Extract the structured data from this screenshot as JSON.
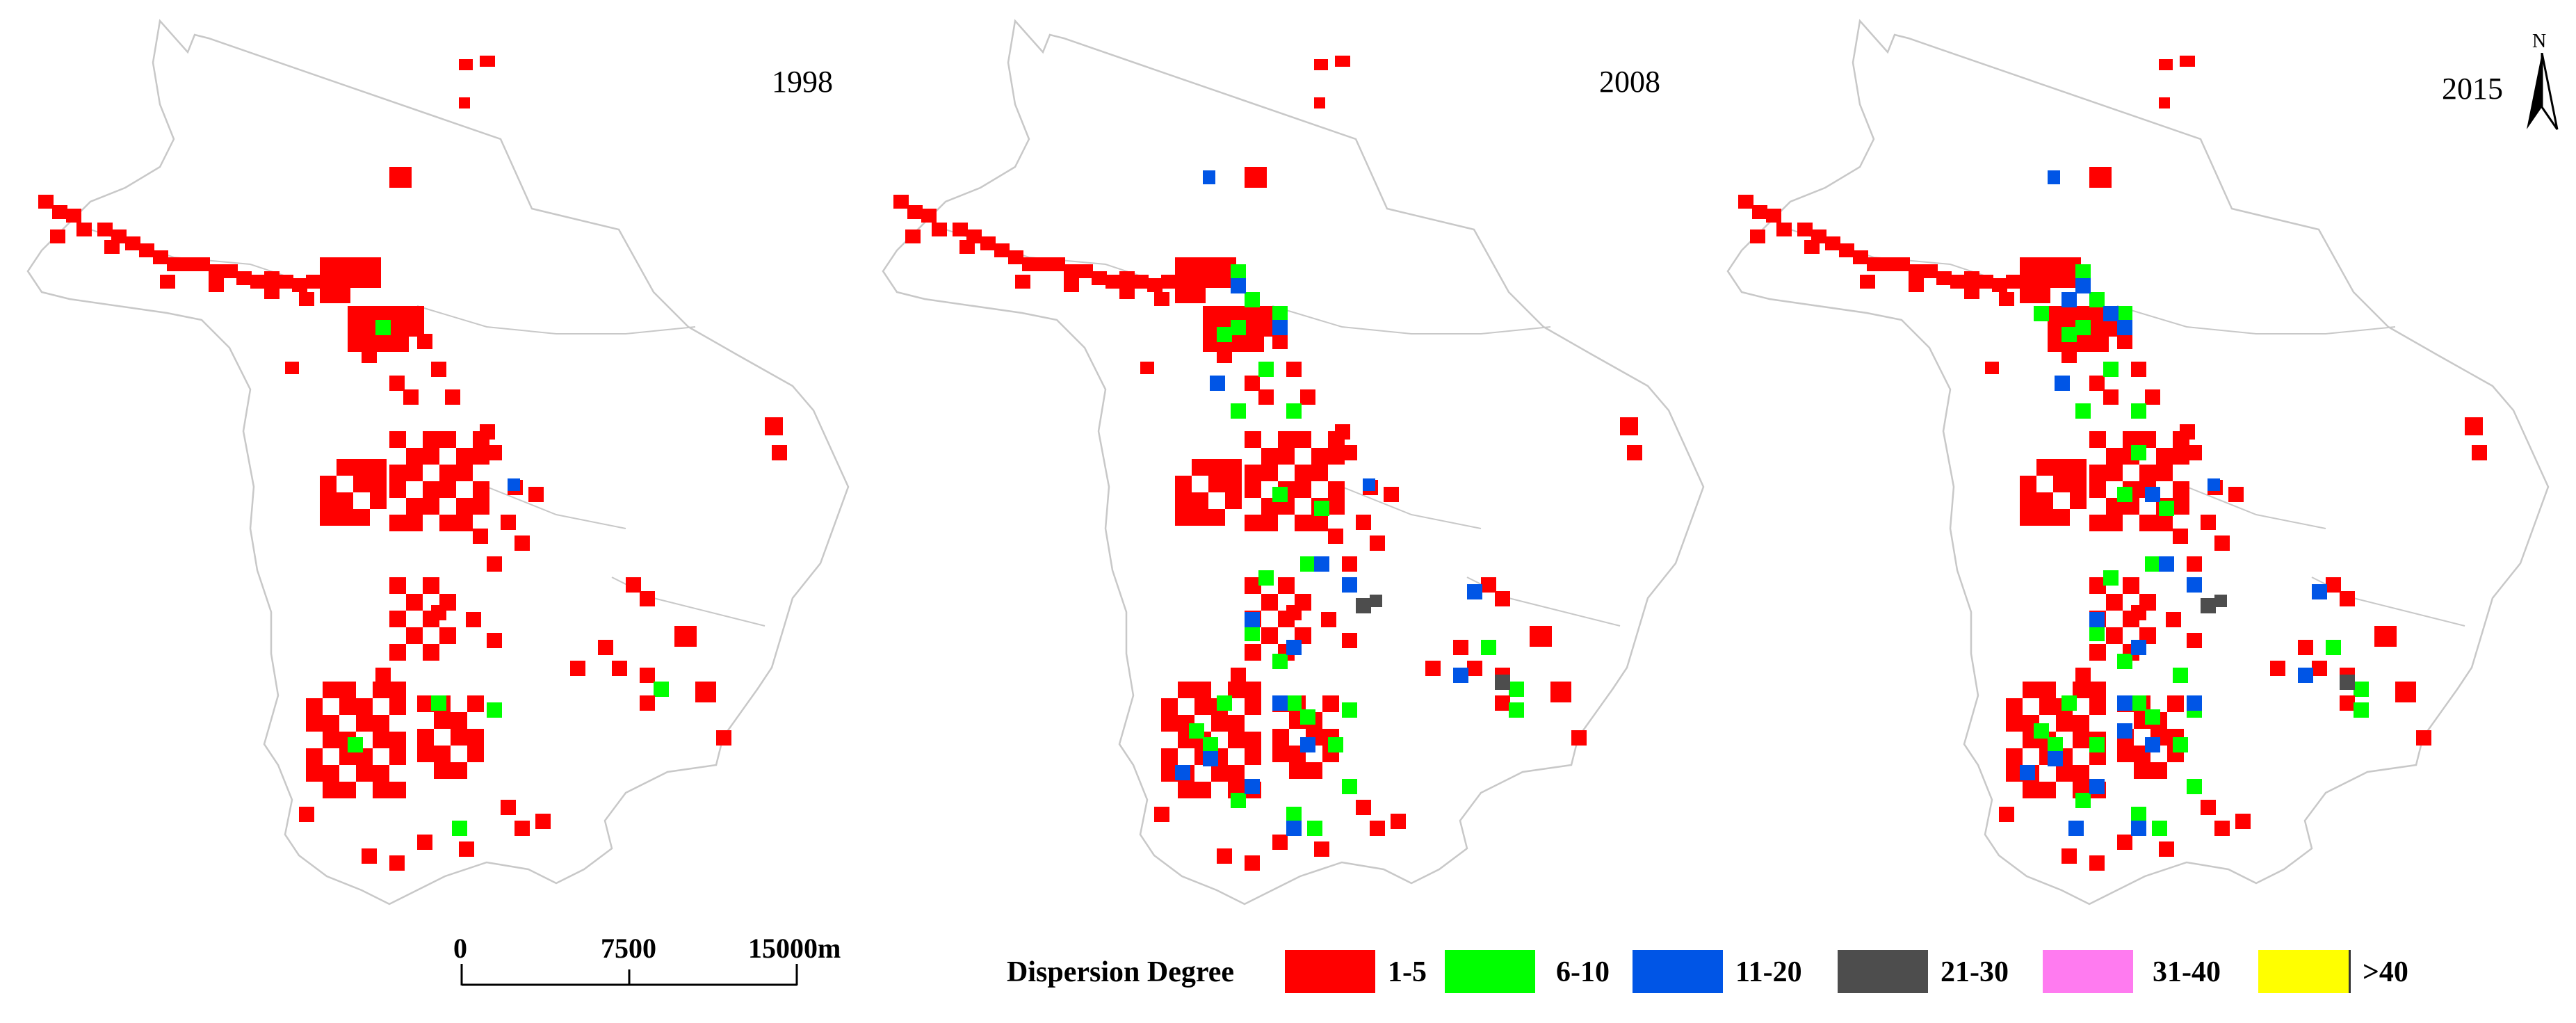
{
  "maps": [
    {
      "year": "1998"
    },
    {
      "year": "2008"
    },
    {
      "year": "2015"
    }
  ],
  "north_arrow": {
    "label": "N"
  },
  "scale_bar": {
    "ticks": [
      "0",
      "7500",
      "15000m"
    ]
  },
  "legend": {
    "title": "Dispersion Degree",
    "classes": [
      {
        "label": "1-5",
        "color": "#ff0000"
      },
      {
        "label": "6-10",
        "color": "#00ff00"
      },
      {
        "label": "11-20",
        "color": "#0055e6"
      },
      {
        "label": "21-30",
        "color": "#4d4d4d"
      },
      {
        "label": "31-40",
        "color": "#ff7bf0"
      },
      {
        "label": ">40",
        "color": "#ffff00"
      }
    ]
  },
  "colors": {
    "boundary": "#c8c8c8",
    "background": "#ffffff"
  }
}
